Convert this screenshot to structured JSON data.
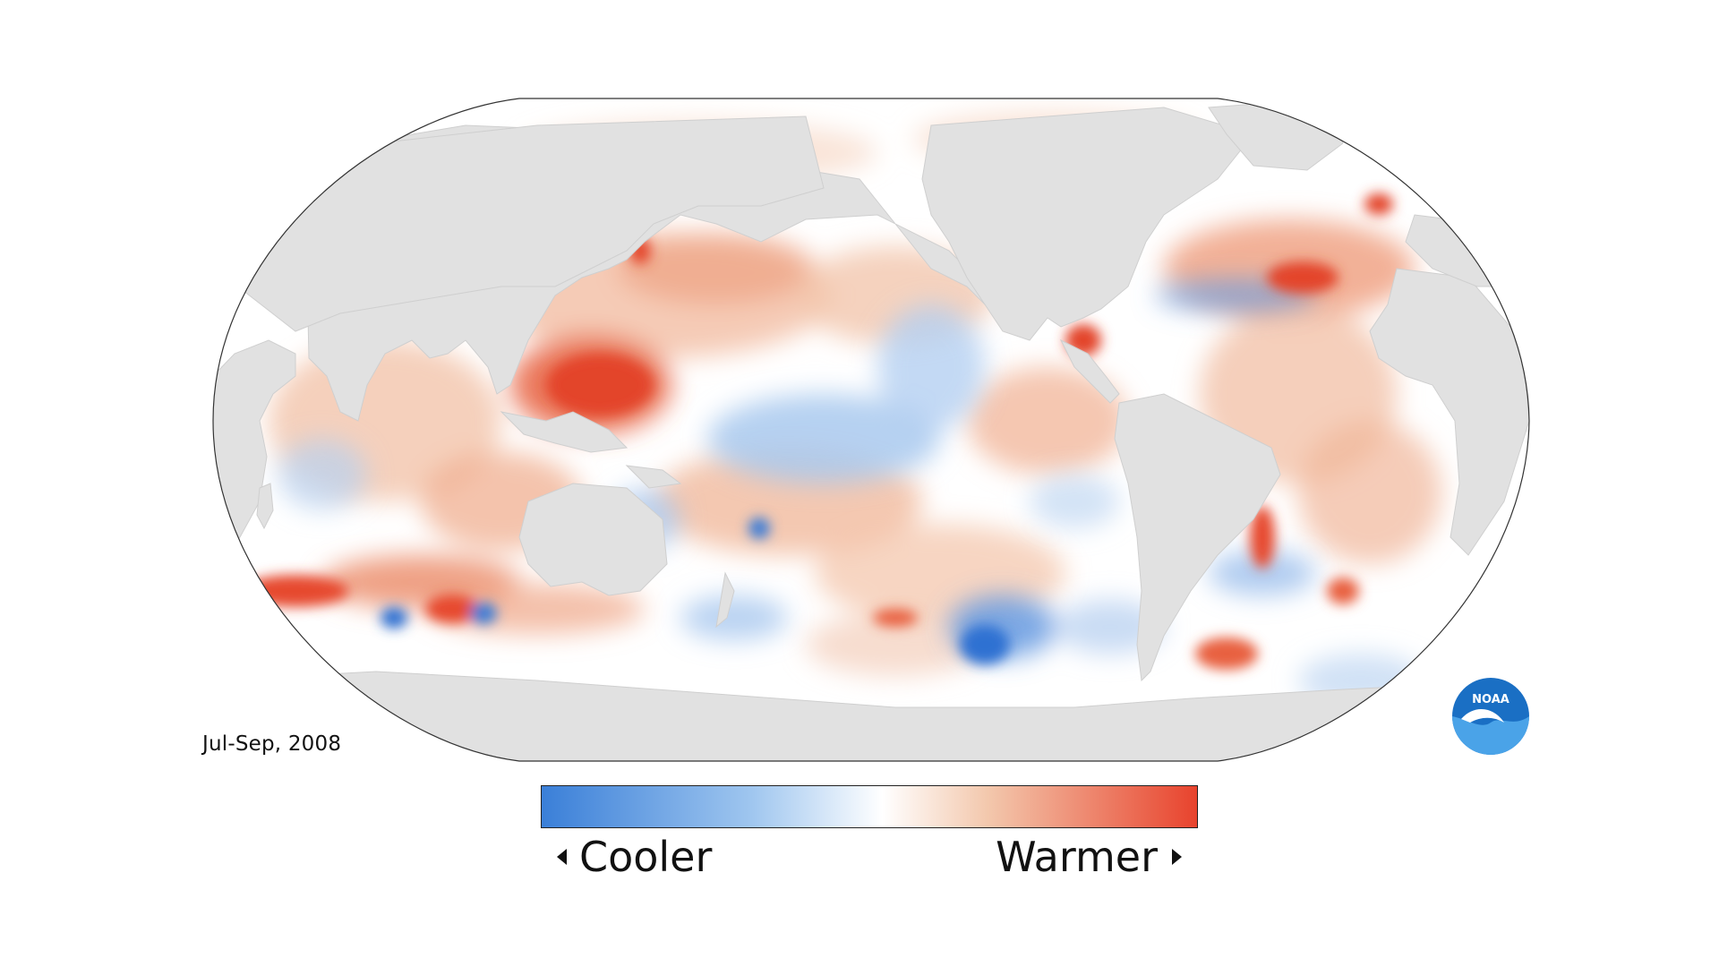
{
  "map": {
    "period": "Jul-Sep, 2008",
    "projection": "Robinson (Pacific-centered)",
    "land_color": "#e1e1e1",
    "ocean_neutral_color": "#ffffff"
  },
  "legend": {
    "cooler_label": "Cooler",
    "warmer_label": "Warmer",
    "cool_color": "#3a7fd8",
    "warm_color": "#e8432d"
  },
  "logo": {
    "text": "NOAA",
    "name": "noaa-logo",
    "blue": "#1a6fc4"
  }
}
